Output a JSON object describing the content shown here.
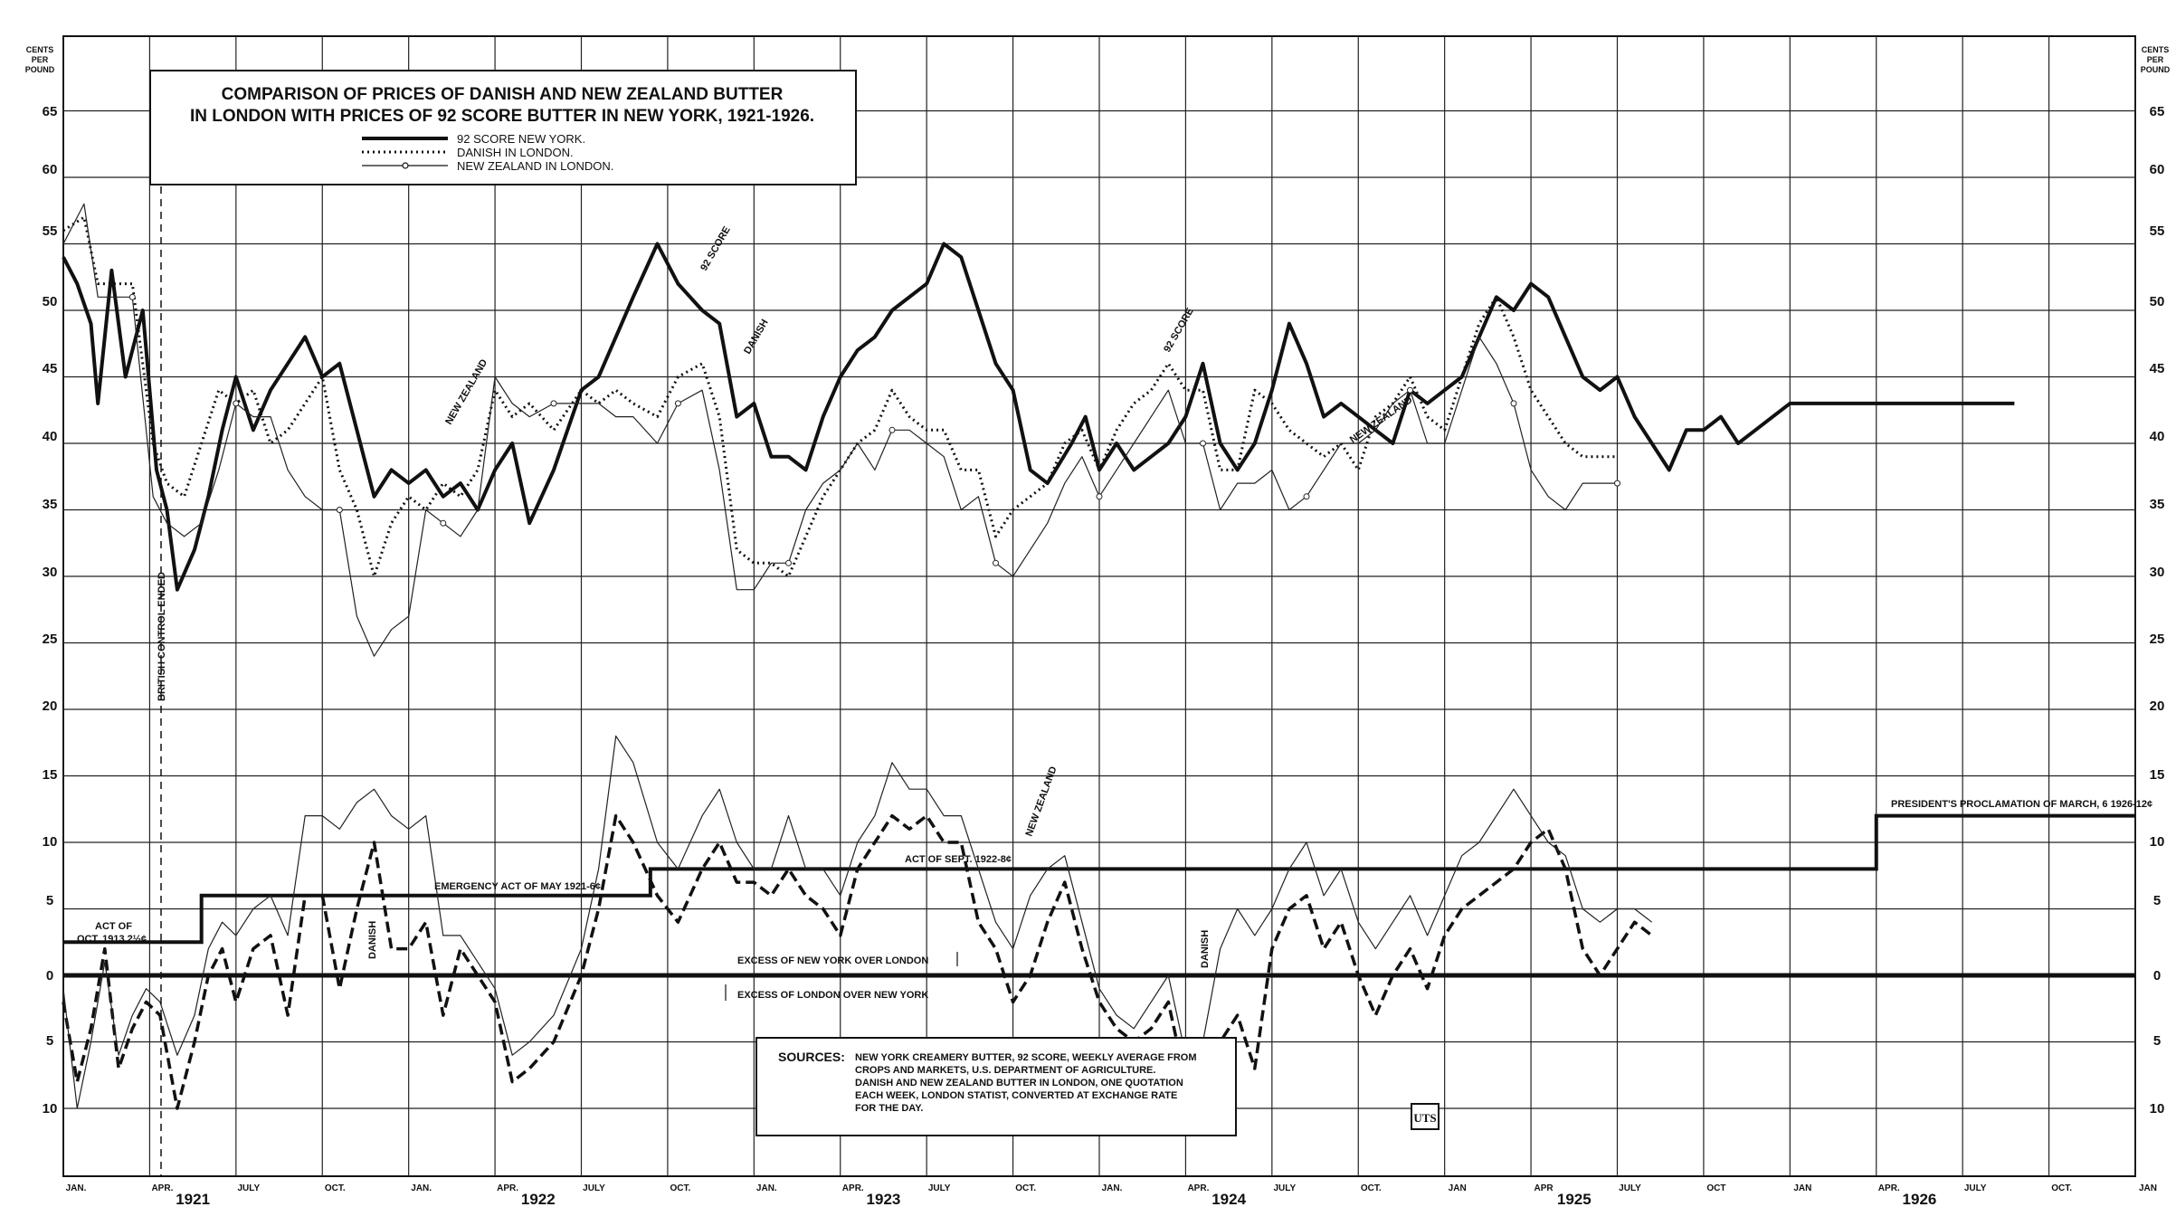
{
  "chart_data": {
    "type": "line",
    "title_lines": [
      "COMPARISON OF PRICES OF DANISH AND NEW ZEALAND BUTTER",
      "IN LONDON WITH PRICES OF 92 SCORE BUTTER IN NEW YORK, 1921-1926."
    ],
    "y_unit_left": [
      "CENTS",
      "PER",
      "POUND"
    ],
    "y_unit_right": [
      "CENTS",
      "PER",
      "POUND"
    ],
    "upper_y_ticks": [
      "65",
      "60",
      "55",
      "50",
      "45",
      "40",
      "35",
      "30",
      "25",
      "20",
      "15",
      "10",
      "5"
    ],
    "lower_y_ticks": [
      "15",
      "10",
      "5",
      "0",
      "5",
      "10"
    ],
    "x_month_labels": [
      "JAN.",
      "APR.",
      "JULY",
      "OCT.",
      "JAN.",
      "APR.",
      "JULY",
      "OCT.",
      "JAN.",
      "APR.",
      "JULY",
      "OCT.",
      "JAN.",
      "APR.",
      "JULY",
      "OCT.",
      "JAN",
      "APR",
      "JULY",
      "OCT",
      "JAN",
      "APR.",
      "JULY",
      "OCT.",
      "JAN"
    ],
    "x_year_labels": [
      "1921",
      "1922",
      "1923",
      "1924",
      "1925",
      "1926"
    ],
    "legend": [
      {
        "name": "92 SCORE NEW YORK.",
        "style": "solid-thick"
      },
      {
        "name": "DANISH IN LONDON.",
        "style": "dotted"
      },
      {
        "name": "NEW ZEALAND IN LONDON.",
        "style": "thin-circle"
      }
    ],
    "x_range": [
      1921.0,
      1927.0
    ],
    "upper_ylim": [
      5,
      70
    ],
    "lower_ylim": [
      -15,
      20
    ],
    "grid": true,
    "series": [
      {
        "name": "92 SCORE NEW YORK.",
        "x": [
          1921.0,
          1921.04,
          1921.08,
          1921.1,
          1921.14,
          1921.18,
          1921.23,
          1921.27,
          1921.3,
          1921.33,
          1921.38,
          1921.42,
          1921.46,
          1921.5,
          1921.55,
          1921.6,
          1921.65,
          1921.7,
          1921.75,
          1921.8,
          1921.85,
          1921.9,
          1921.95,
          1922.0,
          1922.05,
          1922.1,
          1922.15,
          1922.2,
          1922.25,
          1922.3,
          1922.35,
          1922.42,
          1922.5,
          1922.55,
          1922.6,
          1922.65,
          1922.72,
          1922.78,
          1922.85,
          1922.9,
          1922.95,
          1923.0,
          1923.05,
          1923.1,
          1923.15,
          1923.2,
          1923.25,
          1923.3,
          1923.35,
          1923.4,
          1923.5,
          1923.55,
          1923.6,
          1923.65,
          1923.7,
          1923.75,
          1923.8,
          1923.85,
          1923.92,
          1923.96,
          1924.0,
          1924.05,
          1924.1,
          1924.15,
          1924.2,
          1924.25,
          1924.3,
          1924.35,
          1924.4,
          1924.45,
          1924.5,
          1924.55,
          1924.6,
          1924.65,
          1924.7,
          1924.75,
          1924.8,
          1924.85,
          1924.9,
          1924.95,
          1925.0,
          1925.05,
          1925.1,
          1925.15,
          1925.2,
          1925.25,
          1925.3,
          1925.35,
          1925.4,
          1925.45,
          1925.5,
          1925.55,
          1925.6,
          1925.65,
          1925.7,
          1925.75,
          1925.8,
          1925.85,
          1925.9,
          1925.95,
          1926.0,
          1926.05,
          1926.1,
          1926.15,
          1926.2,
          1926.25,
          1926.3,
          1926.35,
          1926.4,
          1926.45,
          1926.5,
          1926.55,
          1926.6,
          1926.65
        ],
        "values": [
          54,
          52,
          49,
          43,
          53,
          45,
          50,
          38,
          35,
          29,
          32,
          36,
          41,
          45,
          41,
          44,
          46,
          48,
          45,
          46,
          41,
          36,
          38,
          37,
          38,
          36,
          37,
          35,
          38,
          40,
          34,
          38,
          44,
          45,
          48,
          51,
          55,
          52,
          50,
          49,
          42,
          43,
          39,
          39,
          38,
          42,
          45,
          47,
          48,
          50,
          52,
          55,
          54,
          50,
          46,
          44,
          38,
          37,
          40,
          42,
          38,
          40,
          38,
          39,
          40,
          42,
          46,
          40,
          38,
          40,
          44,
          49,
          46,
          42,
          43,
          42,
          41,
          40,
          44,
          43,
          44,
          45,
          48,
          51,
          50,
          52,
          51,
          48,
          45,
          44,
          45,
          42,
          40,
          38,
          41,
          41,
          42,
          40,
          41,
          42,
          43,
          43,
          43,
          43,
          43,
          43,
          43,
          43,
          43,
          43,
          43,
          43,
          43,
          43
        ]
      },
      {
        "name": "DANISH IN LONDON.",
        "x": [
          1921.0,
          1921.06,
          1921.1,
          1921.2,
          1921.26,
          1921.3,
          1921.35,
          1921.4,
          1921.45,
          1921.5,
          1921.55,
          1921.6,
          1921.65,
          1921.7,
          1921.75,
          1921.8,
          1921.85,
          1921.9,
          1921.95,
          1922.0,
          1922.05,
          1922.1,
          1922.15,
          1922.2,
          1922.25,
          1922.3,
          1922.35,
          1922.42,
          1922.5,
          1922.55,
          1922.6,
          1922.65,
          1922.72,
          1922.78,
          1922.85,
          1922.9,
          1922.95,
          1923.0,
          1923.05,
          1923.1,
          1923.15,
          1923.2,
          1923.25,
          1923.3,
          1923.35,
          1923.4,
          1923.45,
          1923.5,
          1923.55,
          1923.6,
          1923.65,
          1923.7,
          1923.75,
          1923.8,
          1923.85,
          1923.9,
          1923.95,
          1924.0,
          1924.05,
          1924.1,
          1924.15,
          1924.2,
          1924.25,
          1924.3,
          1924.35,
          1924.4,
          1924.45,
          1924.5,
          1924.55,
          1924.6,
          1924.65,
          1924.7,
          1924.75,
          1924.8,
          1924.85,
          1924.9,
          1924.95,
          1925.0,
          1925.05,
          1925.1,
          1925.15,
          1925.2,
          1925.25,
          1925.3,
          1925.35,
          1925.4,
          1925.45,
          1925.5
        ],
        "values": [
          56,
          57,
          52,
          52,
          40,
          37,
          36,
          40,
          44,
          43,
          44,
          40,
          41,
          43,
          45,
          38,
          35,
          30,
          34,
          36,
          35,
          37,
          36,
          38,
          44,
          42,
          43,
          41,
          44,
          43,
          44,
          43,
          42,
          45,
          46,
          42,
          32,
          31,
          31,
          30,
          33,
          36,
          38,
          40,
          41,
          44,
          42,
          41,
          41,
          38,
          38,
          33,
          35,
          36,
          37,
          40,
          41,
          38,
          41,
          43,
          44,
          46,
          44,
          44,
          38,
          38,
          44,
          43,
          41,
          40,
          39,
          40,
          38,
          42,
          43,
          45,
          42,
          41,
          45,
          49,
          51,
          48,
          44,
          42,
          40,
          39,
          39,
          39
        ]
      },
      {
        "name": "NEW ZEALAND IN LONDON.",
        "x": [
          1921.0,
          1921.06,
          1921.1,
          1921.2,
          1921.26,
          1921.3,
          1921.35,
          1921.4,
          1921.45,
          1921.5,
          1921.55,
          1921.6,
          1921.65,
          1921.7,
          1921.75,
          1921.8,
          1921.85,
          1921.9,
          1921.95,
          1922.0,
          1922.05,
          1922.1,
          1922.15,
          1922.2,
          1922.25,
          1922.3,
          1922.35,
          1922.42,
          1922.5,
          1922.55,
          1922.6,
          1922.65,
          1922.72,
          1922.78,
          1922.85,
          1922.9,
          1922.95,
          1923.0,
          1923.05,
          1923.1,
          1923.15,
          1923.2,
          1923.25,
          1923.3,
          1923.35,
          1923.4,
          1923.45,
          1923.5,
          1923.55,
          1923.6,
          1923.65,
          1923.7,
          1923.75,
          1923.8,
          1923.85,
          1923.9,
          1923.95,
          1924.0,
          1924.05,
          1924.1,
          1924.15,
          1924.2,
          1924.25,
          1924.3,
          1924.35,
          1924.4,
          1924.45,
          1924.5,
          1924.55,
          1924.6,
          1924.65,
          1924.7,
          1924.75,
          1924.8,
          1924.85,
          1924.9,
          1924.95,
          1925.0,
          1925.05,
          1925.1,
          1925.15,
          1925.2,
          1925.25,
          1925.3,
          1925.35,
          1925.4,
          1925.45,
          1925.5
        ],
        "values": [
          55,
          58,
          51,
          51,
          36,
          34,
          33,
          34,
          38,
          43,
          42,
          42,
          38,
          36,
          35,
          35,
          27,
          24,
          26,
          27,
          35,
          34,
          33,
          35,
          45,
          43,
          42,
          43,
          43,
          43,
          42,
          42,
          40,
          43,
          44,
          38,
          29,
          29,
          31,
          31,
          35,
          37,
          38,
          40,
          38,
          41,
          41,
          40,
          39,
          35,
          36,
          31,
          30,
          32,
          34,
          37,
          39,
          36,
          38,
          40,
          42,
          44,
          40,
          40,
          35,
          37,
          37,
          38,
          35,
          36,
          38,
          40,
          40,
          41,
          43,
          44,
          40,
          40,
          44,
          48,
          46,
          43,
          38,
          36,
          35,
          37,
          37,
          37
        ]
      },
      {
        "name": "EXCESS OF NEW YORK OVER LONDON (DANISH)",
        "x": [
          1921.0,
          1921.04,
          1921.08,
          1921.12,
          1921.16,
          1921.2,
          1921.24,
          1921.28,
          1921.33,
          1921.38,
          1921.42,
          1921.46,
          1921.5,
          1921.55,
          1921.6,
          1921.65,
          1921.7,
          1921.75,
          1921.8,
          1921.85,
          1921.9,
          1921.95,
          1922.0,
          1922.05,
          1922.1,
          1922.15,
          1922.2,
          1922.25,
          1922.3,
          1922.35,
          1922.42,
          1922.5,
          1922.55,
          1922.6,
          1922.65,
          1922.72,
          1922.78,
          1922.85,
          1922.9,
          1922.95,
          1923.0,
          1923.05,
          1923.1,
          1923.15,
          1923.2,
          1923.25,
          1923.3,
          1923.35,
          1923.4,
          1923.45,
          1923.5,
          1923.55,
          1923.6,
          1923.65,
          1923.7,
          1923.75,
          1923.8,
          1923.85,
          1923.9,
          1923.95,
          1924.0,
          1924.05,
          1924.1,
          1924.15,
          1924.2,
          1924.25,
          1924.3,
          1924.35,
          1924.4,
          1924.45,
          1924.5,
          1924.55,
          1924.6,
          1924.65,
          1924.7,
          1924.75,
          1924.8,
          1924.85,
          1924.9,
          1924.95,
          1925.0,
          1925.05,
          1925.1,
          1925.15,
          1925.2,
          1925.25,
          1925.3,
          1925.35,
          1925.4,
          1925.45,
          1925.5,
          1925.55,
          1925.6
        ],
        "values": [
          -2,
          -8,
          -4,
          2,
          -7,
          -4,
          -2,
          -3,
          -10,
          -5,
          0,
          2,
          -2,
          2,
          3,
          -3,
          6,
          6,
          -1,
          5,
          10,
          2,
          2,
          4,
          -3,
          2,
          0,
          -2,
          -8,
          -7,
          -5,
          0,
          5,
          12,
          10,
          6,
          4,
          8,
          10,
          7,
          7,
          6,
          8,
          6,
          5,
          3,
          8,
          10,
          12,
          11,
          12,
          10,
          10,
          4,
          2,
          -2,
          0,
          4,
          7,
          2,
          -2,
          -4,
          -5,
          -4,
          -2,
          -8,
          -10,
          -5,
          -3,
          -7,
          2,
          5,
          6,
          2,
          4,
          0,
          -3,
          0,
          2,
          -1,
          3,
          5,
          6,
          7,
          8,
          10,
          11,
          8,
          2,
          0,
          2,
          4,
          3
        ]
      },
      {
        "name": "EXCESS OF NEW YORK OVER LONDON (NEW ZEALAND)",
        "x": [
          1921.0,
          1921.04,
          1921.08,
          1921.12,
          1921.16,
          1921.2,
          1921.24,
          1921.28,
          1921.33,
          1921.38,
          1921.42,
          1921.46,
          1921.5,
          1921.55,
          1921.6,
          1921.65,
          1921.7,
          1921.75,
          1921.8,
          1921.85,
          1921.9,
          1921.95,
          1922.0,
          1922.05,
          1922.1,
          1922.15,
          1922.2,
          1922.25,
          1922.3,
          1922.35,
          1922.42,
          1922.5,
          1922.55,
          1922.6,
          1922.65,
          1922.72,
          1922.78,
          1922.85,
          1922.9,
          1922.95,
          1923.0,
          1923.05,
          1923.1,
          1923.15,
          1923.2,
          1923.25,
          1923.3,
          1923.35,
          1923.4,
          1923.45,
          1923.5,
          1923.55,
          1923.6,
          1923.65,
          1923.7,
          1923.75,
          1923.8,
          1923.85,
          1923.9,
          1923.95,
          1924.0,
          1924.05,
          1924.1,
          1924.15,
          1924.2,
          1924.25,
          1924.3,
          1924.35,
          1924.4,
          1924.45,
          1924.5,
          1924.55,
          1924.6,
          1924.65,
          1924.7,
          1924.75,
          1924.8,
          1924.85,
          1924.9,
          1924.95,
          1925.0,
          1925.05,
          1925.1,
          1925.15,
          1925.2,
          1925.25,
          1925.3,
          1925.35,
          1925.4,
          1925.45,
          1925.5,
          1925.55,
          1925.6
        ],
        "values": [
          -1,
          -10,
          -5,
          1,
          -6,
          -3,
          -1,
          -2,
          -6,
          -3,
          2,
          4,
          3,
          5,
          6,
          3,
          12,
          12,
          11,
          13,
          14,
          12,
          11,
          12,
          3,
          3,
          1,
          -1,
          -6,
          -5,
          -3,
          2,
          8,
          18,
          16,
          10,
          8,
          12,
          14,
          10,
          8,
          8,
          12,
          8,
          8,
          6,
          10,
          12,
          16,
          14,
          14,
          12,
          12,
          8,
          4,
          2,
          6,
          8,
          9,
          4,
          -1,
          -3,
          -4,
          -2,
          0,
          -6,
          -5,
          2,
          5,
          3,
          5,
          8,
          10,
          6,
          8,
          4,
          2,
          4,
          6,
          3,
          6,
          9,
          10,
          12,
          14,
          12,
          10,
          9,
          5,
          4,
          5,
          5,
          4
        ]
      }
    ]
  },
  "tariff_steps": [
    {
      "from": 1921.0,
      "to": 1921.4,
      "value": 2.5
    },
    {
      "from": 1921.4,
      "to": 1922.7,
      "value": 6
    },
    {
      "from": 1922.7,
      "to": 1926.25,
      "value": 8
    },
    {
      "from": 1926.25,
      "to": 1927.0,
      "value": 12
    }
  ],
  "annotations": {
    "act_1913": [
      "ACT OF",
      "OCT. 1913  2½¢"
    ],
    "emergency_act": "EMERGENCY ACT OF MAY 1921-6¢",
    "act_1922": "ACT OF SEPT. 1922-8¢",
    "proclamation": "PRESIDENT'S PROCLAMATION OF MARCH, 6 1926-12¢",
    "british_control": "BRITISH CONTROL ENDED",
    "excess_ny": "EXCESS OF NEW YORK OVER LONDON",
    "excess_london": "EXCESS OF LONDON OVER NEW YORK",
    "line_labels": {
      "score92_a": "92 SCORE",
      "score92_b": "92 SCORE",
      "danish_a": "DANISH",
      "newzealand_a": "NEW ZEALAND",
      "newzealand_b": "NEW ZEALAND",
      "danish_lower": "DANISH",
      "newzealand_lower": "NEW ZEALAND",
      "danish_lower_b": "DANISH"
    }
  },
  "sources": {
    "heading": "SOURCES:",
    "lines": [
      "NEW YORK CREAMERY BUTTER, 92 SCORE, WEEKLY AVERAGE FROM",
      "CROPS AND MARKETS, U.S. DEPARTMENT OF AGRICULTURE.",
      "DANISH AND NEW ZEALAND BUTTER IN LONDON, ONE QUOTATION",
      "EACH WEEK, LONDON STATIST, CONVERTED AT EXCHANGE RATE",
      "FOR THE DAY."
    ]
  },
  "logo_text": "UTS"
}
